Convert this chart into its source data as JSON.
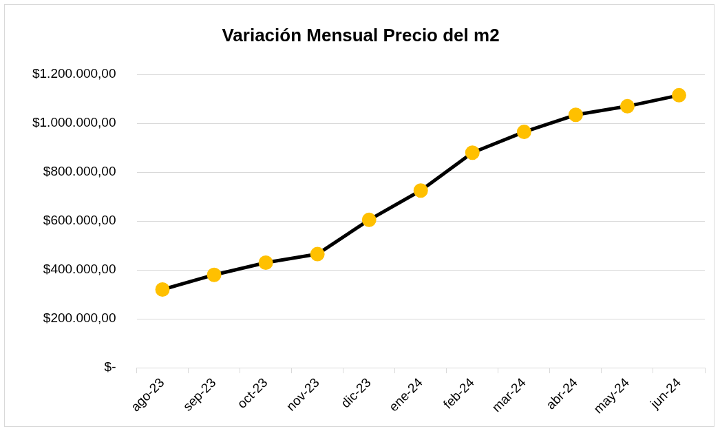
{
  "chart_data": {
    "type": "line",
    "title": "Variación Mensual Precio del m2",
    "categories": [
      "ago-23",
      "sep-23",
      "oct-23",
      "nov-23",
      "dic-23",
      "ene-24",
      "feb-24",
      "mar-24",
      "abr-24",
      "may-24",
      "jun-24"
    ],
    "series": [
      {
        "color": "#000000",
        "colors": [
          "#ffc000",
          "#ffc000",
          "#ffc000",
          "#ffc000",
          "#ffc000",
          "#ffc000",
          "#ffc000",
          "#ffc000",
          "#ffc000",
          "#ffc000",
          "#ffc000"
        ],
        "values": [
          320000,
          380000,
          430000,
          465000,
          605000,
          725000,
          880000,
          965000,
          1035000,
          1070000,
          1115000
        ]
      }
    ],
    "ylim": [
      0,
      1200000
    ],
    "yticks": [
      {
        "value": 0,
        "label": "$-"
      },
      {
        "value": 200000,
        "label": "$200.000,00"
      },
      {
        "value": 400000,
        "label": "$400.000,00"
      },
      {
        "value": 600000,
        "label": "$600.000,00"
      },
      {
        "value": 800000,
        "label": "$800.000,00"
      },
      {
        "value": 1000000,
        "label": "$1.000.000,00"
      },
      {
        "value": 1200000,
        "label": "$1.200.000,00"
      }
    ],
    "grid": "y",
    "marker": "circle",
    "line_style": "solid",
    "legend": false
  }
}
